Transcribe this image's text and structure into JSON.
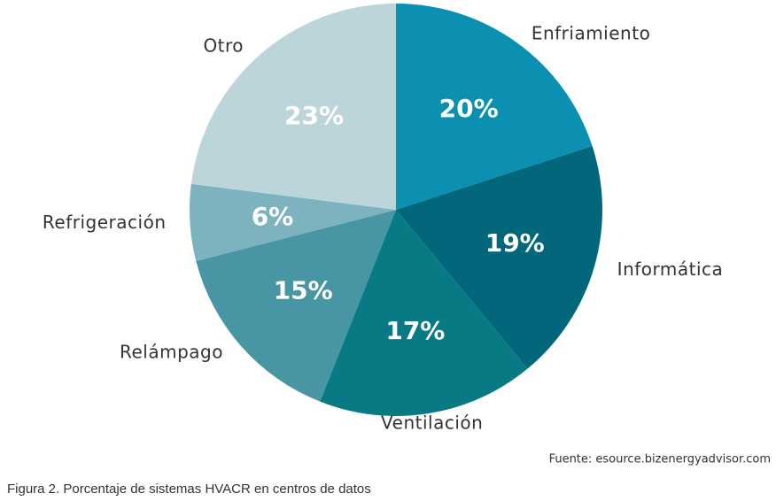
{
  "chart_data": {
    "type": "pie",
    "categories": [
      "Enfriamiento",
      "Informática",
      "Ventilación",
      "Relámpago",
      "Refrigeración",
      "Otro"
    ],
    "values": [
      20,
      19,
      17,
      15,
      6,
      23
    ],
    "value_labels": [
      "20%",
      "19%",
      "17%",
      "15%",
      "6%",
      "23%"
    ],
    "colors": [
      "#0b90b2",
      "#02677a",
      "#087a84",
      "#4895a3",
      "#7db3bf",
      "#bcd5db"
    ],
    "source": "Fuente: esource.bizenergyadvisor.com",
    "caption": "Figura 2. Porcentaje de sistemas HVACR en centros de datos"
  }
}
